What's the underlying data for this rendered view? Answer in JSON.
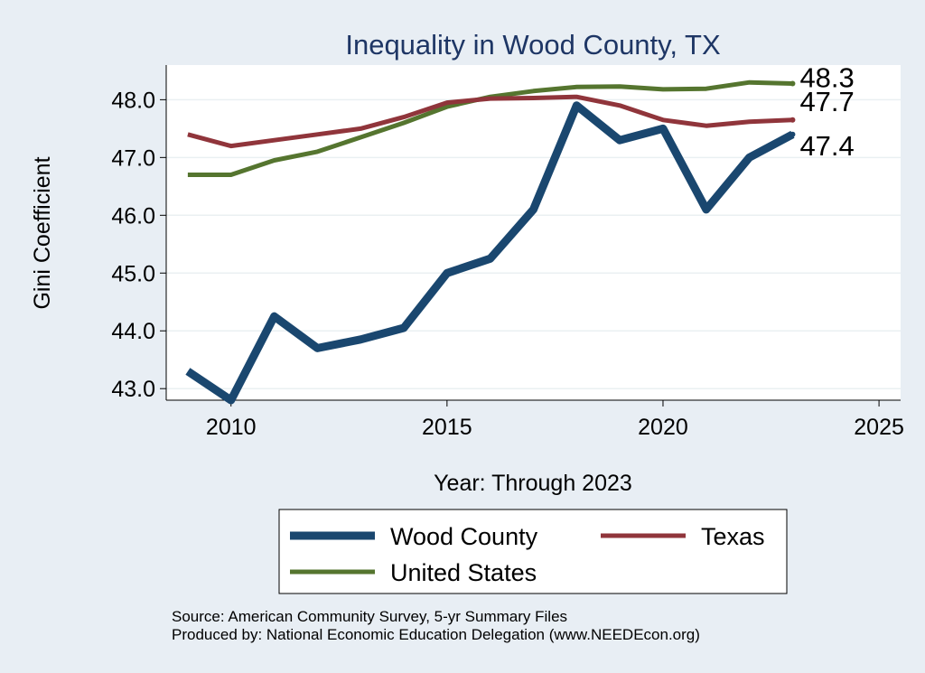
{
  "chart_data": {
    "type": "line",
    "title": "Inequality in Wood County, TX",
    "xlabel": "Year: Through 2023",
    "ylabel": "Gini Coefficient",
    "xlim": [
      2008.5,
      2025.5
    ],
    "ylim": [
      42.8,
      48.6
    ],
    "xticks": [
      2010,
      2015,
      2020,
      2025
    ],
    "yticks": [
      43.0,
      44.0,
      45.0,
      46.0,
      47.0,
      48.0
    ],
    "x": [
      2009,
      2010,
      2011,
      2012,
      2013,
      2014,
      2015,
      2016,
      2017,
      2018,
      2019,
      2020,
      2021,
      2022,
      2023
    ],
    "series": [
      {
        "name": "Wood County",
        "color": "#1a476f",
        "values": [
          43.3,
          42.8,
          44.25,
          43.7,
          43.85,
          44.05,
          45.0,
          45.25,
          46.1,
          47.9,
          47.3,
          47.5,
          46.1,
          47.0,
          47.4
        ],
        "end_label": "47.4"
      },
      {
        "name": "Texas",
        "color": "#90353b",
        "values": [
          47.4,
          47.2,
          47.3,
          47.4,
          47.5,
          47.7,
          47.95,
          48.02,
          48.03,
          48.05,
          47.9,
          47.65,
          47.55,
          47.62,
          47.65
        ],
        "end_label": "47.7"
      },
      {
        "name": "United States",
        "color": "#55752f",
        "values": [
          46.7,
          46.7,
          46.95,
          47.1,
          47.35,
          47.6,
          47.88,
          48.05,
          48.15,
          48.22,
          48.23,
          48.18,
          48.19,
          48.3,
          48.28
        ],
        "end_label": "48.3"
      }
    ],
    "legend_position": "bottom"
  },
  "footer": {
    "source": "Source: American Community Survey, 5-yr Summary Files",
    "produced_by": "Produced by: National Economic Education Delegation (www.NEEDEcon.org)"
  }
}
